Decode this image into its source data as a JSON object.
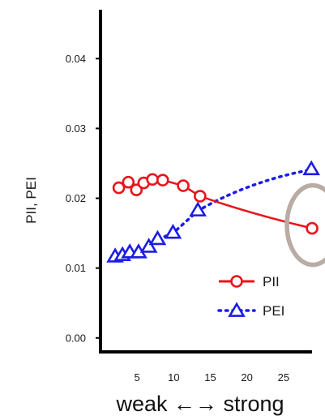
{
  "chart_data": {
    "type": "line",
    "ylabel": "PII, PEI",
    "xlabel": "weak ←→ strong",
    "xlim": [
      0,
      30
    ],
    "ylim": [
      -0.002,
      0.047
    ],
    "x_ticks": [
      5,
      10,
      15,
      20,
      25
    ],
    "y_ticks": [
      0.0,
      0.01,
      0.02,
      0.03,
      0.04
    ],
    "y_tick_labels": [
      "0.00",
      "0.01",
      "0.02",
      "0.03",
      "0.04"
    ],
    "grid": false,
    "legend_position": "bottom-right",
    "series": [
      {
        "name": "PII",
        "color": "#e8141c",
        "marker": "circle",
        "line_style": "solid",
        "x": [
          2.5,
          3.8,
          4.9,
          5.9,
          7.1,
          8.5,
          11.3,
          13.6,
          28.9
        ],
        "y": [
          0.0215,
          0.0223,
          0.0212,
          0.0222,
          0.0227,
          0.0226,
          0.0218,
          0.0203,
          0.0157
        ]
      },
      {
        "name": "PEI",
        "color": "#1c1ce6",
        "marker": "triangle",
        "line_style": "dotted",
        "x": [
          2.0,
          3.0,
          4.0,
          5.2,
          6.6,
          7.8,
          9.9,
          13.3,
          28.8
        ],
        "y": [
          0.0116,
          0.0118,
          0.0122,
          0.0122,
          0.013,
          0.0141,
          0.015,
          0.0182,
          0.0241
        ]
      }
    ],
    "annotation": {
      "type": "ellipse",
      "color": "#b8aca4"
    }
  }
}
